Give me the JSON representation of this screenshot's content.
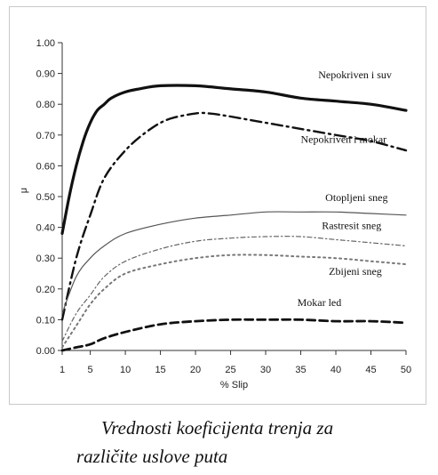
{
  "chart_data": {
    "type": "line",
    "title": "",
    "xlabel": "% Slip",
    "ylabel": "μ",
    "xlim": [
      1,
      50
    ],
    "ylim": [
      0,
      1.0
    ],
    "x_ticks": [
      1,
      5,
      10,
      15,
      20,
      25,
      30,
      35,
      40,
      45,
      50
    ],
    "y_ticks": [
      "0.00",
      "0.10",
      "0.20",
      "0.30",
      "0.40",
      "0.50",
      "0.60",
      "0.70",
      "0.80",
      "0.90",
      "1.00"
    ],
    "grid": false,
    "legend": "labels placed next to curves",
    "series": [
      {
        "name": "Nepokriven i suv",
        "style": "solid-thick",
        "color": "#111111",
        "x": [
          1,
          2,
          3,
          4,
          5,
          6,
          7,
          8,
          10,
          12,
          15,
          20,
          25,
          30,
          35,
          40,
          45,
          50
        ],
        "y": [
          0.38,
          0.5,
          0.6,
          0.68,
          0.74,
          0.78,
          0.8,
          0.82,
          0.84,
          0.85,
          0.86,
          0.86,
          0.85,
          0.84,
          0.82,
          0.81,
          0.8,
          0.78
        ]
      },
      {
        "name": "Nepokriven i mokar",
        "style": "dash-dot",
        "color": "#111111",
        "x": [
          1,
          3,
          5,
          7,
          10,
          13,
          16,
          20,
          22,
          25,
          30,
          35,
          40,
          45,
          50
        ],
        "y": [
          0.1,
          0.3,
          0.44,
          0.56,
          0.65,
          0.71,
          0.75,
          0.77,
          0.77,
          0.76,
          0.74,
          0.72,
          0.7,
          0.68,
          0.65
        ]
      },
      {
        "name": "Otopljeni sneg",
        "style": "solid-thin",
        "color": "#555555",
        "x": [
          1,
          3,
          5,
          7,
          10,
          15,
          20,
          25,
          30,
          35,
          40,
          45,
          50
        ],
        "y": [
          0.12,
          0.24,
          0.3,
          0.34,
          0.38,
          0.41,
          0.43,
          0.44,
          0.45,
          0.45,
          0.45,
          0.445,
          0.44
        ]
      },
      {
        "name": "Rastresit sneg",
        "style": "dash-dot-thin",
        "color": "#666666",
        "x": [
          1,
          3,
          5,
          7,
          10,
          15,
          20,
          25,
          30,
          35,
          40,
          45,
          50
        ],
        "y": [
          0.03,
          0.12,
          0.18,
          0.24,
          0.29,
          0.33,
          0.355,
          0.365,
          0.37,
          0.37,
          0.36,
          0.35,
          0.34
        ]
      },
      {
        "name": "Zbijeni sneg",
        "style": "dotted",
        "color": "#777777",
        "x": [
          1,
          3,
          5,
          7,
          10,
          15,
          20,
          25,
          30,
          35,
          40,
          45,
          50
        ],
        "y": [
          0.01,
          0.08,
          0.15,
          0.2,
          0.25,
          0.28,
          0.3,
          0.31,
          0.31,
          0.305,
          0.3,
          0.29,
          0.28
        ]
      },
      {
        "name": "Mokar led",
        "style": "dashed-thick",
        "color": "#111111",
        "x": [
          1,
          3,
          5,
          7,
          10,
          15,
          20,
          25,
          30,
          35,
          40,
          45,
          50
        ],
        "y": [
          0.0,
          0.01,
          0.02,
          0.04,
          0.06,
          0.085,
          0.095,
          0.1,
          0.1,
          0.1,
          0.095,
          0.095,
          0.09
        ]
      }
    ]
  },
  "caption": {
    "line1": "Vrednosti koeficijenta trenja za",
    "line2": "različite uslove puta"
  }
}
